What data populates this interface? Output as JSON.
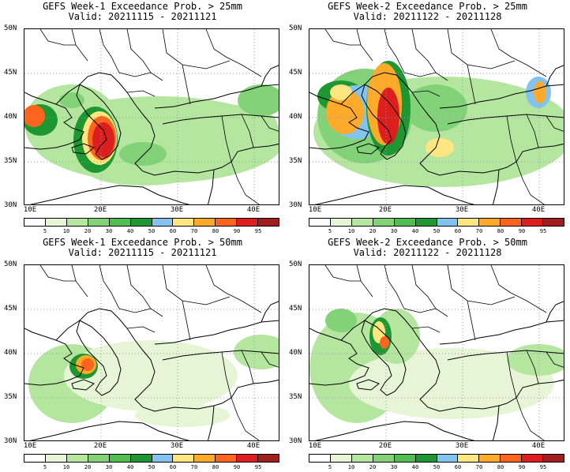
{
  "panels": [
    {
      "title_line1": "GEFS Week-1 Exceedance Prob. > 25mm",
      "title_line2": "Valid: 20211115 - 20211121"
    },
    {
      "title_line1": "GEFS Week-2 Exceedance Prob. > 25mm",
      "title_line2": "Valid: 20211122 - 20211128"
    },
    {
      "title_line1": "GEFS Week-1 Exceedance Prob. > 50mm",
      "title_line2": "Valid: 20211115 - 20211121"
    },
    {
      "title_line1": "GEFS Week-2 Exceedance Prob. > 50mm",
      "title_line2": "Valid: 20211122 - 20211128"
    }
  ],
  "axes": {
    "lat_labels": [
      "50N",
      "45N",
      "40N",
      "35N",
      "30N"
    ],
    "lon_labels": [
      "10E",
      "20E",
      "30E",
      "40E"
    ]
  },
  "colorbar": {
    "labels": [
      "5",
      "10",
      "20",
      "30",
      "40",
      "50",
      "60",
      "70",
      "80",
      "90",
      "95"
    ],
    "colors": [
      "#ffffff",
      "#e6f5d6",
      "#b4e6a0",
      "#82d278",
      "#50be50",
      "#1e9632",
      "#82c3f0",
      "#ffe680",
      "#ffaa28",
      "#ff641e",
      "#dc1e1e",
      "#a01e1e"
    ]
  }
}
